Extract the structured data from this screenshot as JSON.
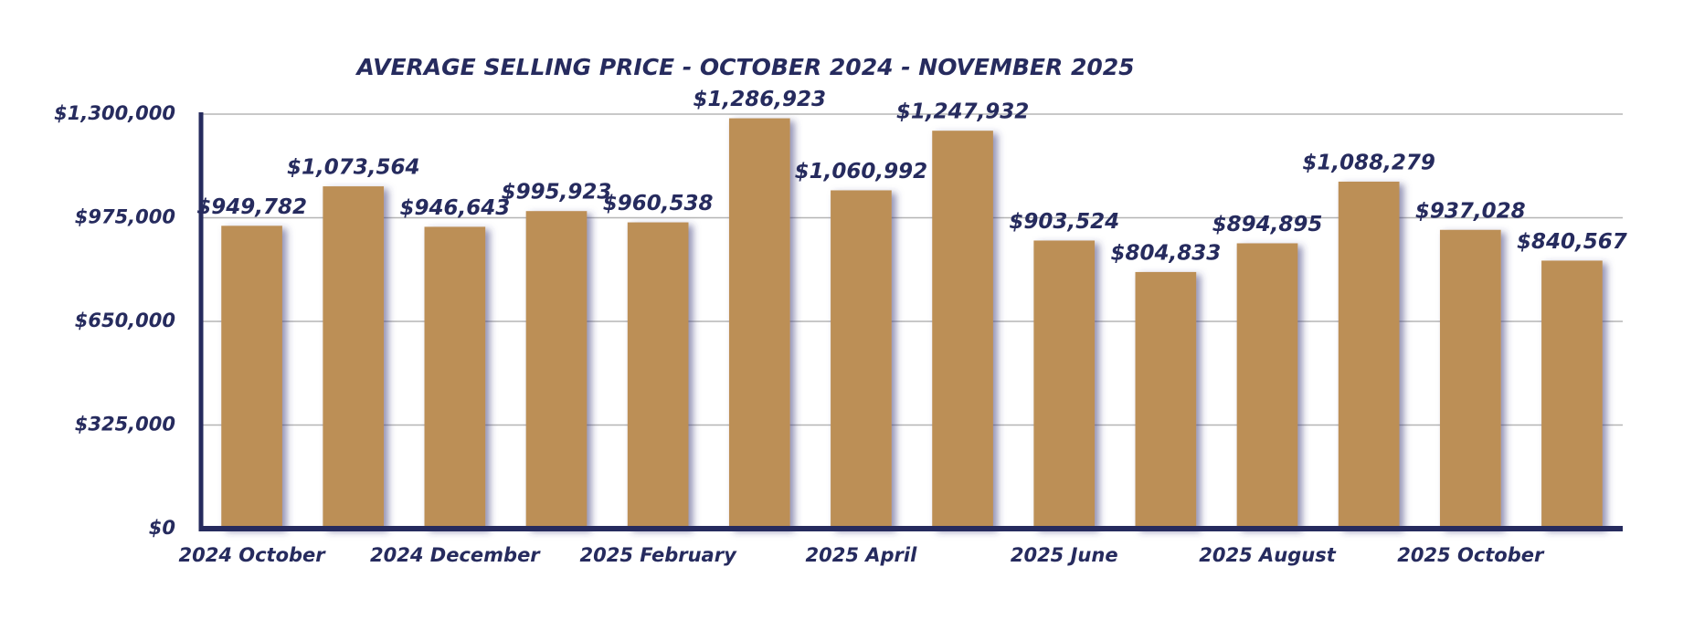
{
  "chart_data": {
    "type": "bar",
    "title": "AVERAGE SELLING PRICE - OCTOBER 2024 - NOVEMBER 2025",
    "categories": [
      "2024 October",
      null,
      "2024 December",
      null,
      "2025 February",
      null,
      "2025 April",
      null,
      "2025 June",
      null,
      "2025 August",
      null,
      "2025 October",
      null
    ],
    "values": [
      949782,
      1073564,
      946643,
      995923,
      960538,
      1286923,
      1060992,
      1247932,
      903524,
      804833,
      894895,
      1088279,
      937028,
      840567
    ],
    "value_labels": [
      "$949,782",
      "$1,073,564",
      "$946,643",
      "$995,923",
      "$960,538",
      "$1,286,923",
      "$1,060,992",
      "$1,247,932",
      "$903,524",
      "$804,833",
      "$894,895",
      "$1,088,279",
      "$937,028",
      "$840,567"
    ],
    "color": "#bc8f57",
    "ylim": [
      0,
      1300000
    ],
    "yticks": [
      {
        "value": 0,
        "label": "$0"
      },
      {
        "value": 325000,
        "label": "$325,000"
      },
      {
        "value": 650000,
        "label": "$650,000"
      },
      {
        "value": 975000,
        "label": "$975,000"
      },
      {
        "value": 1300000,
        "label": "$1,300,000"
      }
    ],
    "grid": true
  }
}
